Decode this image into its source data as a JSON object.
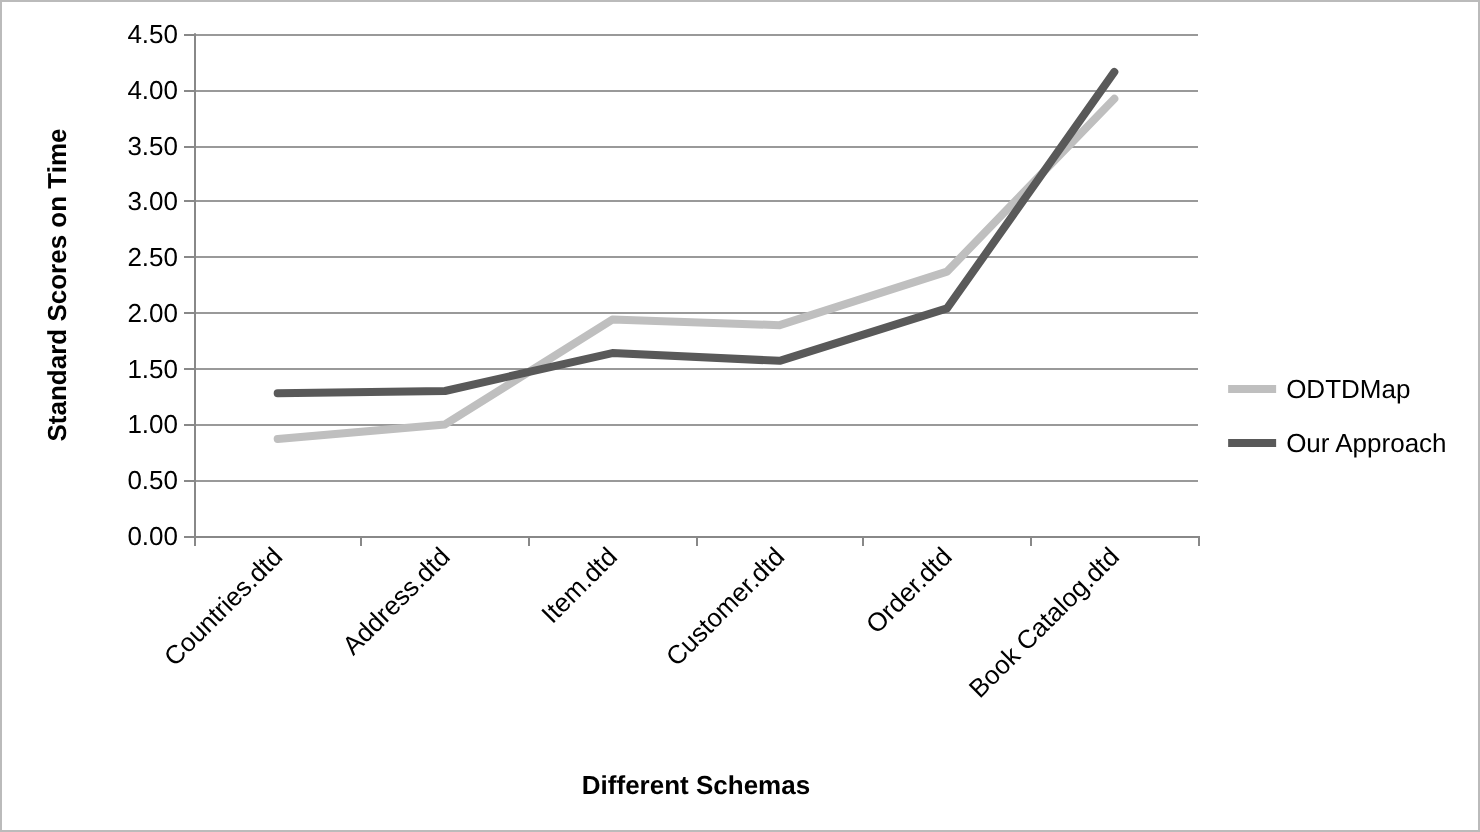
{
  "chart_data": {
    "type": "line",
    "xlabel": "Different Schemas",
    "ylabel": "Standard Scores on Time",
    "categories": [
      "Countries.dtd",
      "Address.dtd",
      "Item.dtd",
      "Customer.dtd",
      "Order.dtd",
      "Book Catalog.dtd"
    ],
    "series": [
      {
        "name": "ODTDMap",
        "color": "#bfbfbf",
        "values": [
          0.87,
          1.0,
          1.94,
          1.89,
          2.37,
          3.92
        ]
      },
      {
        "name": "Our Approach",
        "color": "#595959",
        "values": [
          1.28,
          1.3,
          1.64,
          1.57,
          2.04,
          4.16
        ]
      }
    ],
    "ylim": [
      0,
      4.5
    ],
    "yticks": [
      {
        "value": 0,
        "label": "0.00"
      },
      {
        "value": 0.5,
        "label": "0.50"
      },
      {
        "value": 1,
        "label": "1.00"
      },
      {
        "value": 1.5,
        "label": "1.50"
      },
      {
        "value": 2,
        "label": "2.00"
      },
      {
        "value": 2.5,
        "label": "2.50"
      },
      {
        "value": 3,
        "label": "3.00"
      },
      {
        "value": 3.5,
        "label": "3.50"
      },
      {
        "value": 4,
        "label": "4.00"
      },
      {
        "value": 4.5,
        "label": "4.50"
      }
    ],
    "grid": "y",
    "legend": "right",
    "marker": "none",
    "line_style": "solid"
  }
}
